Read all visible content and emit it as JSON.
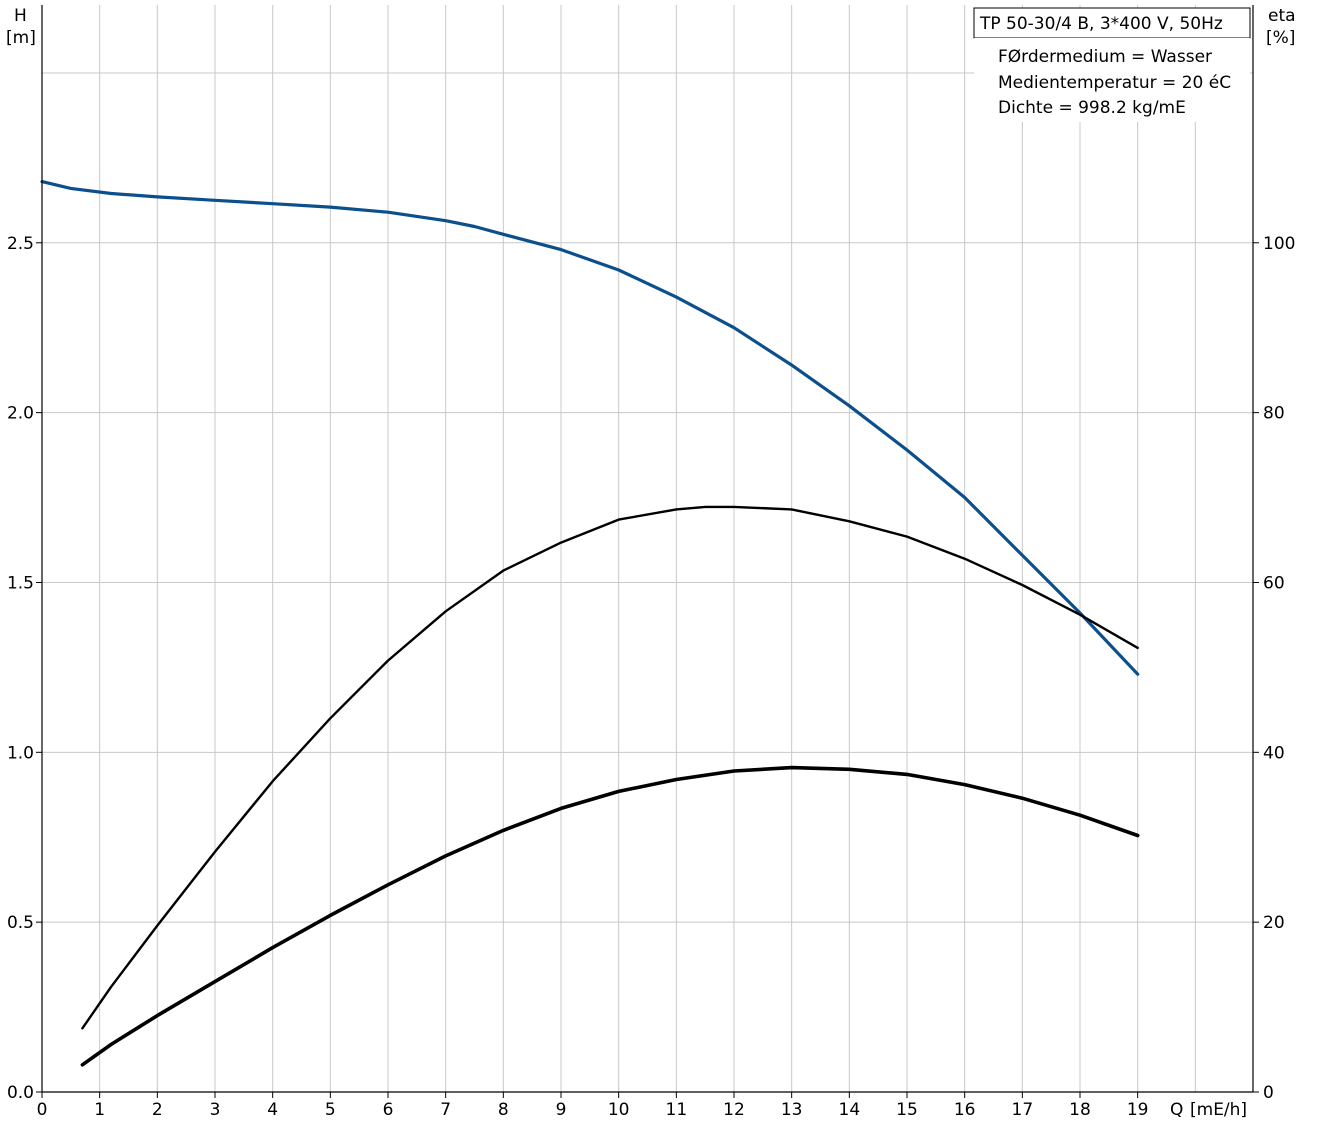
{
  "chart_data": {
    "type": "line",
    "title": "TP 50-30/4 B, 3*400 V, 50Hz",
    "annotations": [
      "FØrdermedium = Wasser",
      "Medientemperatur = 20 éC",
      "Dichte = 998.2 kg/mE"
    ],
    "ylabel": {
      "name": "H",
      "unit": "[m]"
    },
    "y2label": {
      "name": "eta",
      "unit": "[%]"
    },
    "xlabel": {
      "name": "Q",
      "unit": "[mE/h]"
    },
    "xlim": [
      0,
      21
    ],
    "ylim": [
      0,
      3.2
    ],
    "y2lim": [
      0,
      128
    ],
    "x_ticks": [
      0,
      1,
      2,
      3,
      4,
      5,
      6,
      7,
      8,
      9,
      10,
      11,
      12,
      13,
      14,
      15,
      16,
      17,
      18,
      19
    ],
    "x_tick_labels": [
      "0",
      "1",
      "2",
      "3",
      "4",
      "5",
      "6",
      "7",
      "8",
      "9",
      "10",
      "11",
      "12",
      "13",
      "14",
      "15",
      "16",
      "17",
      "18",
      "19"
    ],
    "y_ticks": [
      0.0,
      0.5,
      1.0,
      1.5,
      2.0,
      2.5
    ],
    "y_tick_labels": [
      "0.0",
      "0.5",
      "1.0",
      "1.5",
      "2.0",
      "2.5"
    ],
    "y2_ticks": [
      0,
      20,
      40,
      60,
      80,
      100
    ],
    "y2_tick_labels": [
      "0",
      "20",
      "40",
      "60",
      "80",
      "100"
    ],
    "grid": true,
    "series": [
      {
        "axis": "left",
        "color": "#0b4f8c",
        "x": [
          0,
          0.5,
          1.2,
          2,
          3,
          4,
          5,
          6,
          7,
          7.5,
          8,
          9,
          10,
          11,
          12,
          13,
          14,
          15,
          16,
          17,
          18,
          19
        ],
        "values": [
          2.68,
          2.66,
          2.645,
          2.635,
          2.625,
          2.615,
          2.605,
          2.59,
          2.565,
          2.548,
          2.525,
          2.48,
          2.42,
          2.34,
          2.25,
          2.14,
          2.02,
          1.89,
          1.75,
          1.58,
          1.41,
          1.23
        ]
      },
      {
        "axis": "right",
        "color": "#000000",
        "x": [
          0.7,
          1.2,
          2,
          3,
          4,
          5,
          6,
          7,
          8,
          9,
          10,
          11,
          11.5,
          12,
          13,
          14,
          15,
          16,
          17,
          18,
          19
        ],
        "values": [
          7.5,
          12.4,
          19.6,
          28.3,
          36.6,
          44.0,
          50.8,
          56.6,
          61.4,
          64.7,
          67.4,
          68.6,
          68.9,
          68.9,
          68.6,
          67.2,
          65.4,
          62.8,
          59.7,
          56.2,
          52.3
        ]
      },
      {
        "axis": "left",
        "color": "#000000",
        "x": [
          0.7,
          1.2,
          2,
          3,
          4,
          5,
          6,
          7,
          8,
          9,
          10,
          11,
          12,
          13,
          14,
          15,
          16,
          17,
          18,
          19
        ],
        "values": [
          0.08,
          0.14,
          0.225,
          0.325,
          0.425,
          0.52,
          0.61,
          0.695,
          0.77,
          0.835,
          0.885,
          0.92,
          0.945,
          0.955,
          0.95,
          0.935,
          0.905,
          0.865,
          0.815,
          0.755
        ]
      }
    ]
  }
}
